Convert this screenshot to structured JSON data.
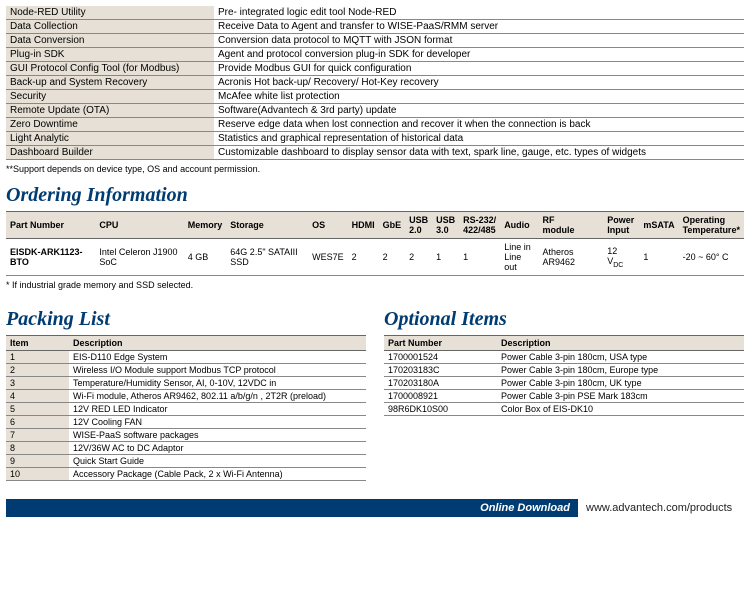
{
  "specRows": [
    [
      "Node-RED Utility",
      "Pre- integrated logic edit tool Node-RED"
    ],
    [
      "Data Collection",
      "Receive Data to Agent and transfer to WISE-PaaS/RMM server"
    ],
    [
      "Data Conversion",
      "Conversion data protocol to MQTT with JSON format"
    ],
    [
      "Plug-in SDK",
      "Agent and protocol conversion plug-in SDK for developer"
    ],
    [
      "GUI Protocol Config Tool (for Modbus)",
      "Provide Modbus GUI for quick configuration"
    ],
    [
      "Back-up and System Recovery",
      "Acronis Hot back-up/ Recovery/ Hot-Key recovery"
    ],
    [
      "Security",
      "McAfee white list protection"
    ],
    [
      "Remote Update (OTA)",
      "Software(Advantech & 3rd party) update"
    ],
    [
      "Zero Downtime",
      "Reserve edge data when lost connection and recover it when the connection is back"
    ],
    [
      "Light Analytic",
      "Statistics and graphical representation of historical data"
    ],
    [
      "Dashboard Builder",
      "Customizable dashboard to display sensor data with text, spark line, gauge, etc. types of widgets"
    ]
  ],
  "specFootnote": "**Support depends on device type, OS and account permission.",
  "ordering": {
    "title": "Ordering Information",
    "headers": [
      "Part Number",
      "CPU",
      "Memory",
      "Storage",
      "OS",
      "HDMI",
      "GbE",
      "USB 2.0",
      "USB 3.0",
      "RS-232/422/485",
      "Audio",
      "RF module",
      "Power Input",
      "mSATA",
      "Operating Temperature*"
    ],
    "row": [
      "EISDK-ARK1123-BTO",
      "Intel Celeron J1900 SoC",
      "4 GB",
      "64G 2.5\" SATAIII SSD",
      "WES7E",
      "2",
      "2",
      "2",
      "1",
      "1",
      "Line in\nLine out",
      "Atheros AR9462",
      "12 V",
      "1",
      "-20 ~ 60° C"
    ],
    "footnote": "* If industrial grade memory and SSD selected."
  },
  "packing": {
    "title": "Packing List",
    "headers": [
      "Item",
      "Description"
    ],
    "rows": [
      [
        "1",
        "EIS-D110 Edge System"
      ],
      [
        "2",
        "Wireless I/O Module support Modbus TCP protocol"
      ],
      [
        "3",
        "Temperature/Humidity Sensor, AI, 0-10V, 12VDC in"
      ],
      [
        "4",
        "Wi-Fi module, Atheros AR9462, 802.11 a/b/g/n , 2T2R (preload)"
      ],
      [
        "5",
        "12V RED LED Indicator"
      ],
      [
        "6",
        "12V Cooling FAN"
      ],
      [
        "7",
        "WISE-PaaS software packages"
      ],
      [
        "8",
        "12V/36W AC to DC Adaptor"
      ],
      [
        "9",
        "Quick Start Guide"
      ],
      [
        "10",
        "Accessory Package (Cable Pack, 2 x Wi-Fi Antenna)"
      ]
    ]
  },
  "optional": {
    "title": "Optional Items",
    "headers": [
      "Part Number",
      "Description"
    ],
    "rows": [
      [
        "1700001524",
        "Power Cable 3-pin 180cm, USA type"
      ],
      [
        "170203183C",
        "Power Cable 3-pin 180cm, Europe type"
      ],
      [
        "170203180A",
        "Power Cable 3-pin 180cm, UK type"
      ],
      [
        "1700008921",
        "Power Cable 3-pin PSE Mark 183cm"
      ],
      [
        "98R6DK10S00",
        "Color Box of EIS-DK10"
      ]
    ]
  },
  "download": {
    "label": "Online Download",
    "url": "www.advantech.com/products"
  }
}
